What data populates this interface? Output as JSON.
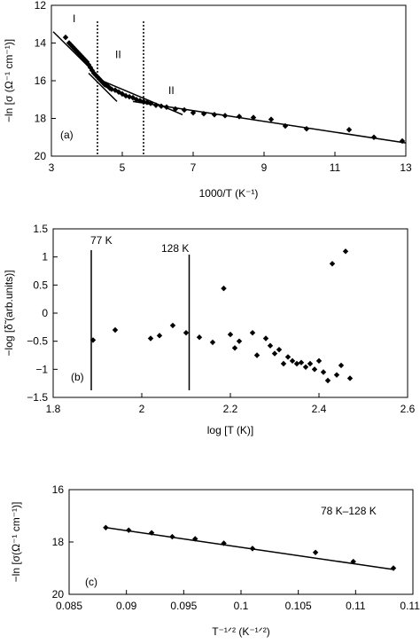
{
  "chart_data": [
    {
      "type": "scatter",
      "panel_label": "(a)",
      "xlabel": "1000/T (K⁻¹)",
      "ylabel": "−ln [σ (Ω⁻¹ cm⁻¹)]",
      "xlim": [
        3,
        13
      ],
      "ylim": [
        20,
        12
      ],
      "y_inverted": true,
      "xticks": [
        "3",
        "5",
        "7",
        "9",
        "11",
        "13"
      ],
      "yticks": [
        "12",
        "14",
        "16",
        "18",
        "20"
      ],
      "grid": false,
      "region_labels": [
        {
          "text": "I",
          "x": 3.6,
          "y": 12.9
        },
        {
          "text": "II",
          "x": 4.8,
          "y": 14.8
        },
        {
          "text": "II",
          "x": 6.3,
          "y": 16.7
        }
      ],
      "vlines": [
        4.3,
        5.6
      ],
      "fit_lines": [
        {
          "x": [
            3.05,
            4.45
          ],
          "y": [
            13.4,
            16.0
          ]
        },
        {
          "x": [
            4.05,
            4.85
          ],
          "y": [
            15.6,
            17.1
          ]
        },
        {
          "x": [
            4.3,
            6.7
          ],
          "y": [
            15.9,
            17.8
          ]
        },
        {
          "x": [
            5.3,
            13.0
          ],
          "y": [
            17.1,
            19.3
          ]
        }
      ],
      "x": [
        3.4,
        3.5,
        3.55,
        3.6,
        3.65,
        3.7,
        3.75,
        3.8,
        3.85,
        3.9,
        3.95,
        4.0,
        4.05,
        4.1,
        4.15,
        4.2,
        4.25,
        4.3,
        4.35,
        4.4,
        4.45,
        4.5,
        4.55,
        4.6,
        4.65,
        4.7,
        4.8,
        4.9,
        5.0,
        5.1,
        5.2,
        5.3,
        5.4,
        5.5,
        5.6,
        5.7,
        5.8,
        5.95,
        6.1,
        6.25,
        6.5,
        6.75,
        7.0,
        7.3,
        7.6,
        7.9,
        8.3,
        8.7,
        9.2,
        9.6,
        10.2,
        11.4,
        12.1,
        12.9
      ],
      "y": [
        13.7,
        14.0,
        14.1,
        14.2,
        14.3,
        14.4,
        14.5,
        14.6,
        14.7,
        14.8,
        14.9,
        15.0,
        15.15,
        15.3,
        15.45,
        15.6,
        15.7,
        15.8,
        15.9,
        16.0,
        16.1,
        16.2,
        16.25,
        16.3,
        16.4,
        16.45,
        16.5,
        16.6,
        16.7,
        16.8,
        16.85,
        16.9,
        17.0,
        17.05,
        17.1,
        17.15,
        17.2,
        17.3,
        17.35,
        17.4,
        17.5,
        17.55,
        17.7,
        17.75,
        17.8,
        17.85,
        17.9,
        17.95,
        18.05,
        18.4,
        18.55,
        18.6,
        19.0,
        19.2
      ]
    },
    {
      "type": "scatter",
      "panel_label": "(b)",
      "xlabel": "log [T (K)]",
      "ylabel": "−log [δ̃ (arb.units)]",
      "xlim": [
        1.8,
        2.6
      ],
      "ylim": [
        -1.5,
        1.5
      ],
      "xticks": [
        "1.8",
        "2",
        "2.2",
        "2.4",
        "2.6"
      ],
      "yticks": [
        "1.5",
        "1",
        "0.5",
        "0",
        "−0.5",
        "−1",
        "−1.5"
      ],
      "grid": false,
      "vline_labels": [
        "77 K",
        "128 K"
      ],
      "vlines": [
        1.886,
        2.107
      ],
      "x": [
        1.89,
        1.94,
        2.02,
        2.04,
        2.07,
        2.1,
        2.13,
        2.16,
        2.185,
        2.2,
        2.21,
        2.22,
        2.25,
        2.26,
        2.28,
        2.29,
        2.3,
        2.31,
        2.32,
        2.33,
        2.34,
        2.35,
        2.36,
        2.37,
        2.38,
        2.39,
        2.4,
        2.41,
        2.42,
        2.43,
        2.44,
        2.45,
        2.46,
        2.47
      ],
      "y": [
        -0.48,
        -0.3,
        -0.45,
        -0.4,
        -0.22,
        -0.35,
        -0.43,
        -0.52,
        0.44,
        -0.38,
        -0.62,
        -0.5,
        -0.35,
        -0.75,
        -0.45,
        -0.58,
        -0.72,
        -0.65,
        -0.9,
        -0.78,
        -0.85,
        -0.9,
        -0.88,
        -0.96,
        -0.9,
        -1.0,
        -0.85,
        -1.05,
        -1.2,
        0.88,
        -1.1,
        -0.93,
        1.1,
        -1.16
      ]
    },
    {
      "type": "scatter",
      "panel_label": "(c)",
      "annotation": "78 K–128 K",
      "xlabel": "T⁻¹ᐟ² (K⁻¹ᐟ²)",
      "ylabel": "−ln [σ(Ω⁻¹ cm⁻¹)]",
      "xlim": [
        0.085,
        0.115
      ],
      "ylim": [
        20,
        16
      ],
      "y_inverted": true,
      "xticks": [
        "0.085",
        "0.09",
        "0.095",
        "0.1",
        "0.105",
        "0.11",
        "0.115"
      ],
      "yticks": [
        "16",
        "18",
        "20"
      ],
      "grid": false,
      "fit_line": {
        "x": [
          0.0882,
          0.1133
        ],
        "y": [
          17.45,
          19.05
        ]
      },
      "x": [
        0.0882,
        0.0902,
        0.0922,
        0.094,
        0.096,
        0.0985,
        0.101,
        0.1065,
        0.1098,
        0.1133
      ],
      "y": [
        17.45,
        17.55,
        17.65,
        17.8,
        17.88,
        18.05,
        18.25,
        18.4,
        18.75,
        19.0
      ]
    }
  ]
}
